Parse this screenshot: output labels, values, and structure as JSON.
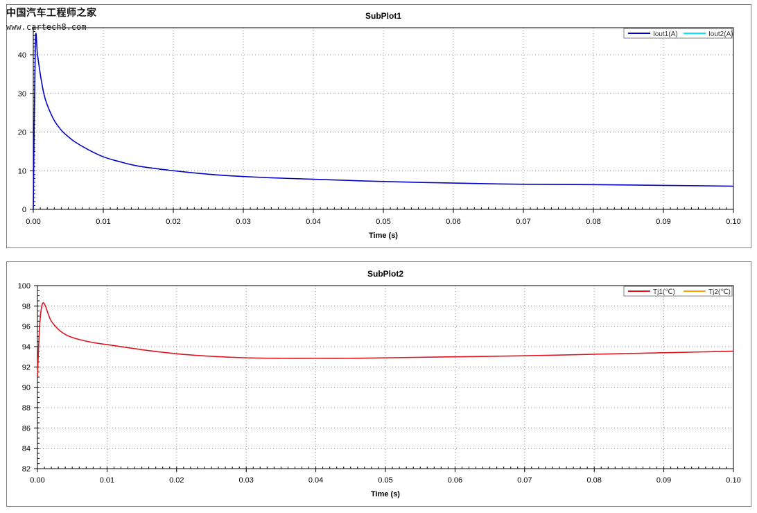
{
  "watermark": {
    "line1": "中国汽车工程师之家",
    "line2": "www.cartech8.com"
  },
  "chart_data": [
    {
      "type": "line",
      "title": "SubPlot1",
      "xlabel": "Time (s)",
      "ylabel": "",
      "xlim": [
        0,
        0.1
      ],
      "ylim": [
        0,
        47
      ],
      "xticks": [
        "0.00",
        "0.01",
        "0.02",
        "0.03",
        "0.04",
        "0.05",
        "0.06",
        "0.07",
        "0.08",
        "0.09",
        "0.10"
      ],
      "yticks": [
        "0",
        "10",
        "20",
        "30",
        "40"
      ],
      "grid": true,
      "legend_position": "top-right",
      "series": [
        {
          "name": "Iout1(A)",
          "color": "#0000c8",
          "x": [
            0,
            0.0003,
            0.0006,
            0.001,
            0.0015,
            0.002,
            0.003,
            0.004,
            0.005,
            0.006,
            0.008,
            0.01,
            0.012,
            0.015,
            0.02,
            0.025,
            0.03,
            0.035,
            0.04,
            0.05,
            0.06,
            0.07,
            0.08,
            0.09,
            0.1
          ],
          "y": [
            0,
            43,
            40,
            35,
            30,
            27,
            23,
            20.5,
            18.8,
            17.4,
            15.3,
            13.6,
            12.5,
            11.2,
            10,
            9.1,
            8.5,
            8.1,
            7.8,
            7.2,
            6.8,
            6.5,
            6.4,
            6.2,
            6
          ]
        },
        {
          "name": "Iout2(A)",
          "color": "#00e5ff",
          "x": [],
          "y": []
        }
      ]
    },
    {
      "type": "line",
      "title": "SubPlot2",
      "xlabel": "Time (s)",
      "ylabel": "",
      "xlim": [
        0,
        0.1
      ],
      "ylim": [
        82,
        100
      ],
      "xticks": [
        "0.00",
        "0.01",
        "0.02",
        "0.03",
        "0.04",
        "0.05",
        "0.06",
        "0.07",
        "0.08",
        "0.09",
        "0.10"
      ],
      "yticks": [
        "82",
        "84",
        "86",
        "88",
        "90",
        "92",
        "94",
        "96",
        "98",
        "100"
      ],
      "grid": true,
      "legend_position": "top-right",
      "series": [
        {
          "name": "Tj1(℃)",
          "color": "#e0141e",
          "x": [
            0,
            0.0002,
            0.0004,
            0.0006,
            0.0008,
            0.001,
            0.0012,
            0.0015,
            0.002,
            0.003,
            0.004,
            0.005,
            0.006,
            0.008,
            0.01,
            0.015,
            0.02,
            0.025,
            0.03,
            0.035,
            0.04,
            0.045,
            0.05,
            0.06,
            0.07,
            0.08,
            0.09,
            0.1
          ],
          "y": [
            91,
            94.5,
            96.8,
            97.9,
            98.3,
            98.2,
            97.9,
            97.3,
            96.5,
            95.7,
            95.2,
            94.9,
            94.7,
            94.4,
            94.2,
            93.7,
            93.3,
            93.05,
            92.9,
            92.85,
            92.85,
            92.85,
            92.9,
            93,
            93.1,
            93.25,
            93.4,
            93.55
          ]
        },
        {
          "name": "Tj2(℃)",
          "color": "#ffa500",
          "x": [],
          "y": []
        }
      ]
    }
  ]
}
